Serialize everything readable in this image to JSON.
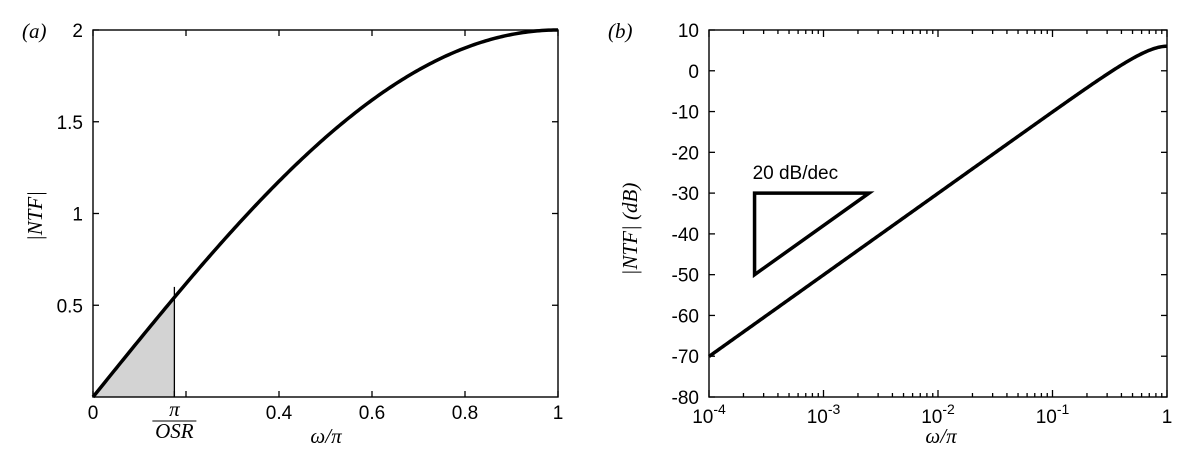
{
  "chart_data": [
    {
      "type": "line",
      "panel_label": "(a)",
      "xlabel": "ω/π",
      "ylabel": "|NTF|",
      "xlim": [
        0,
        1
      ],
      "ylim": [
        0,
        2
      ],
      "x_ticks": [
        0,
        0.2,
        0.4,
        0.6,
        0.8,
        1
      ],
      "x_tick_labels": [
        "0",
        "",
        "0.4",
        "0.6",
        "0.8",
        "1"
      ],
      "x_special_tick": {
        "value": 0.175,
        "numerator": "π",
        "denominator": "OSR"
      },
      "y_ticks": [
        0.5,
        1,
        1.5,
        2
      ],
      "y_tick_labels": [
        "0.5",
        "1",
        "1.5",
        "2"
      ],
      "series": [
        {
          "function": "2·sin(πx/2)",
          "x": [
            0,
            0.05,
            0.1,
            0.15,
            0.2,
            0.25,
            0.3,
            0.35,
            0.4,
            0.45,
            0.5,
            0.55,
            0.6,
            0.65,
            0.7,
            0.75,
            0.8,
            0.85,
            0.9,
            0.95,
            1
          ],
          "y": [
            0,
            0.157,
            0.313,
            0.468,
            0.618,
            0.765,
            0.908,
            1.045,
            1.176,
            1.299,
            1.414,
            1.52,
            1.618,
            1.705,
            1.782,
            1.848,
            1.902,
            1.945,
            1.975,
            1.994,
            2.0
          ]
        }
      ],
      "shaded_region": {
        "x_from": 0,
        "x_to": 0.175,
        "under": "curve",
        "color": "#d3d3d3"
      },
      "marker_line": {
        "x": 0.175,
        "y_top": 0.6
      },
      "grid": false
    },
    {
      "type": "line",
      "panel_label": "(b)",
      "xlabel": "ω/π",
      "ylabel": "|NTF| (dB)",
      "xscale": "log",
      "xlim": [
        0.0001,
        1
      ],
      "ylim": [
        -80,
        10
      ],
      "x_ticks": [
        0.0001,
        0.001,
        0.01,
        0.1,
        1
      ],
      "x_tick_labels": [
        {
          "base": "10",
          "exp": "-4"
        },
        {
          "base": "10",
          "exp": "-3"
        },
        {
          "base": "10",
          "exp": "-2"
        },
        {
          "base": "10",
          "exp": "-1"
        },
        {
          "base": "1",
          "exp": ""
        }
      ],
      "y_ticks": [
        -80,
        -70,
        -60,
        -50,
        -40,
        -30,
        -20,
        -10,
        0,
        10
      ],
      "y_tick_labels": [
        "-80",
        "-70",
        "-60",
        "-50",
        "-40",
        "-30",
        "-20",
        "-10",
        "0",
        "10"
      ],
      "series": [
        {
          "function": "20·log10(2·sin(πx/2))",
          "x": [
            0.0001,
            0.0003,
            0.001,
            0.003,
            0.01,
            0.03,
            0.1,
            0.2,
            0.3,
            0.4,
            0.5,
            0.6,
            0.7,
            0.8,
            0.9,
            1
          ],
          "y": [
            -70.1,
            -60.5,
            -50.1,
            -40.5,
            -30.1,
            -20.5,
            -10.0,
            -4.2,
            -0.9,
            1.4,
            3.0,
            4.2,
            5.0,
            5.6,
            5.9,
            6.0
          ]
        }
      ],
      "slope_annotation": {
        "label": "20 dB/dec",
        "x_from": 0.00025,
        "x_to": 0.0025,
        "y_low": -50,
        "y_high": -30
      },
      "grid": false
    }
  ]
}
